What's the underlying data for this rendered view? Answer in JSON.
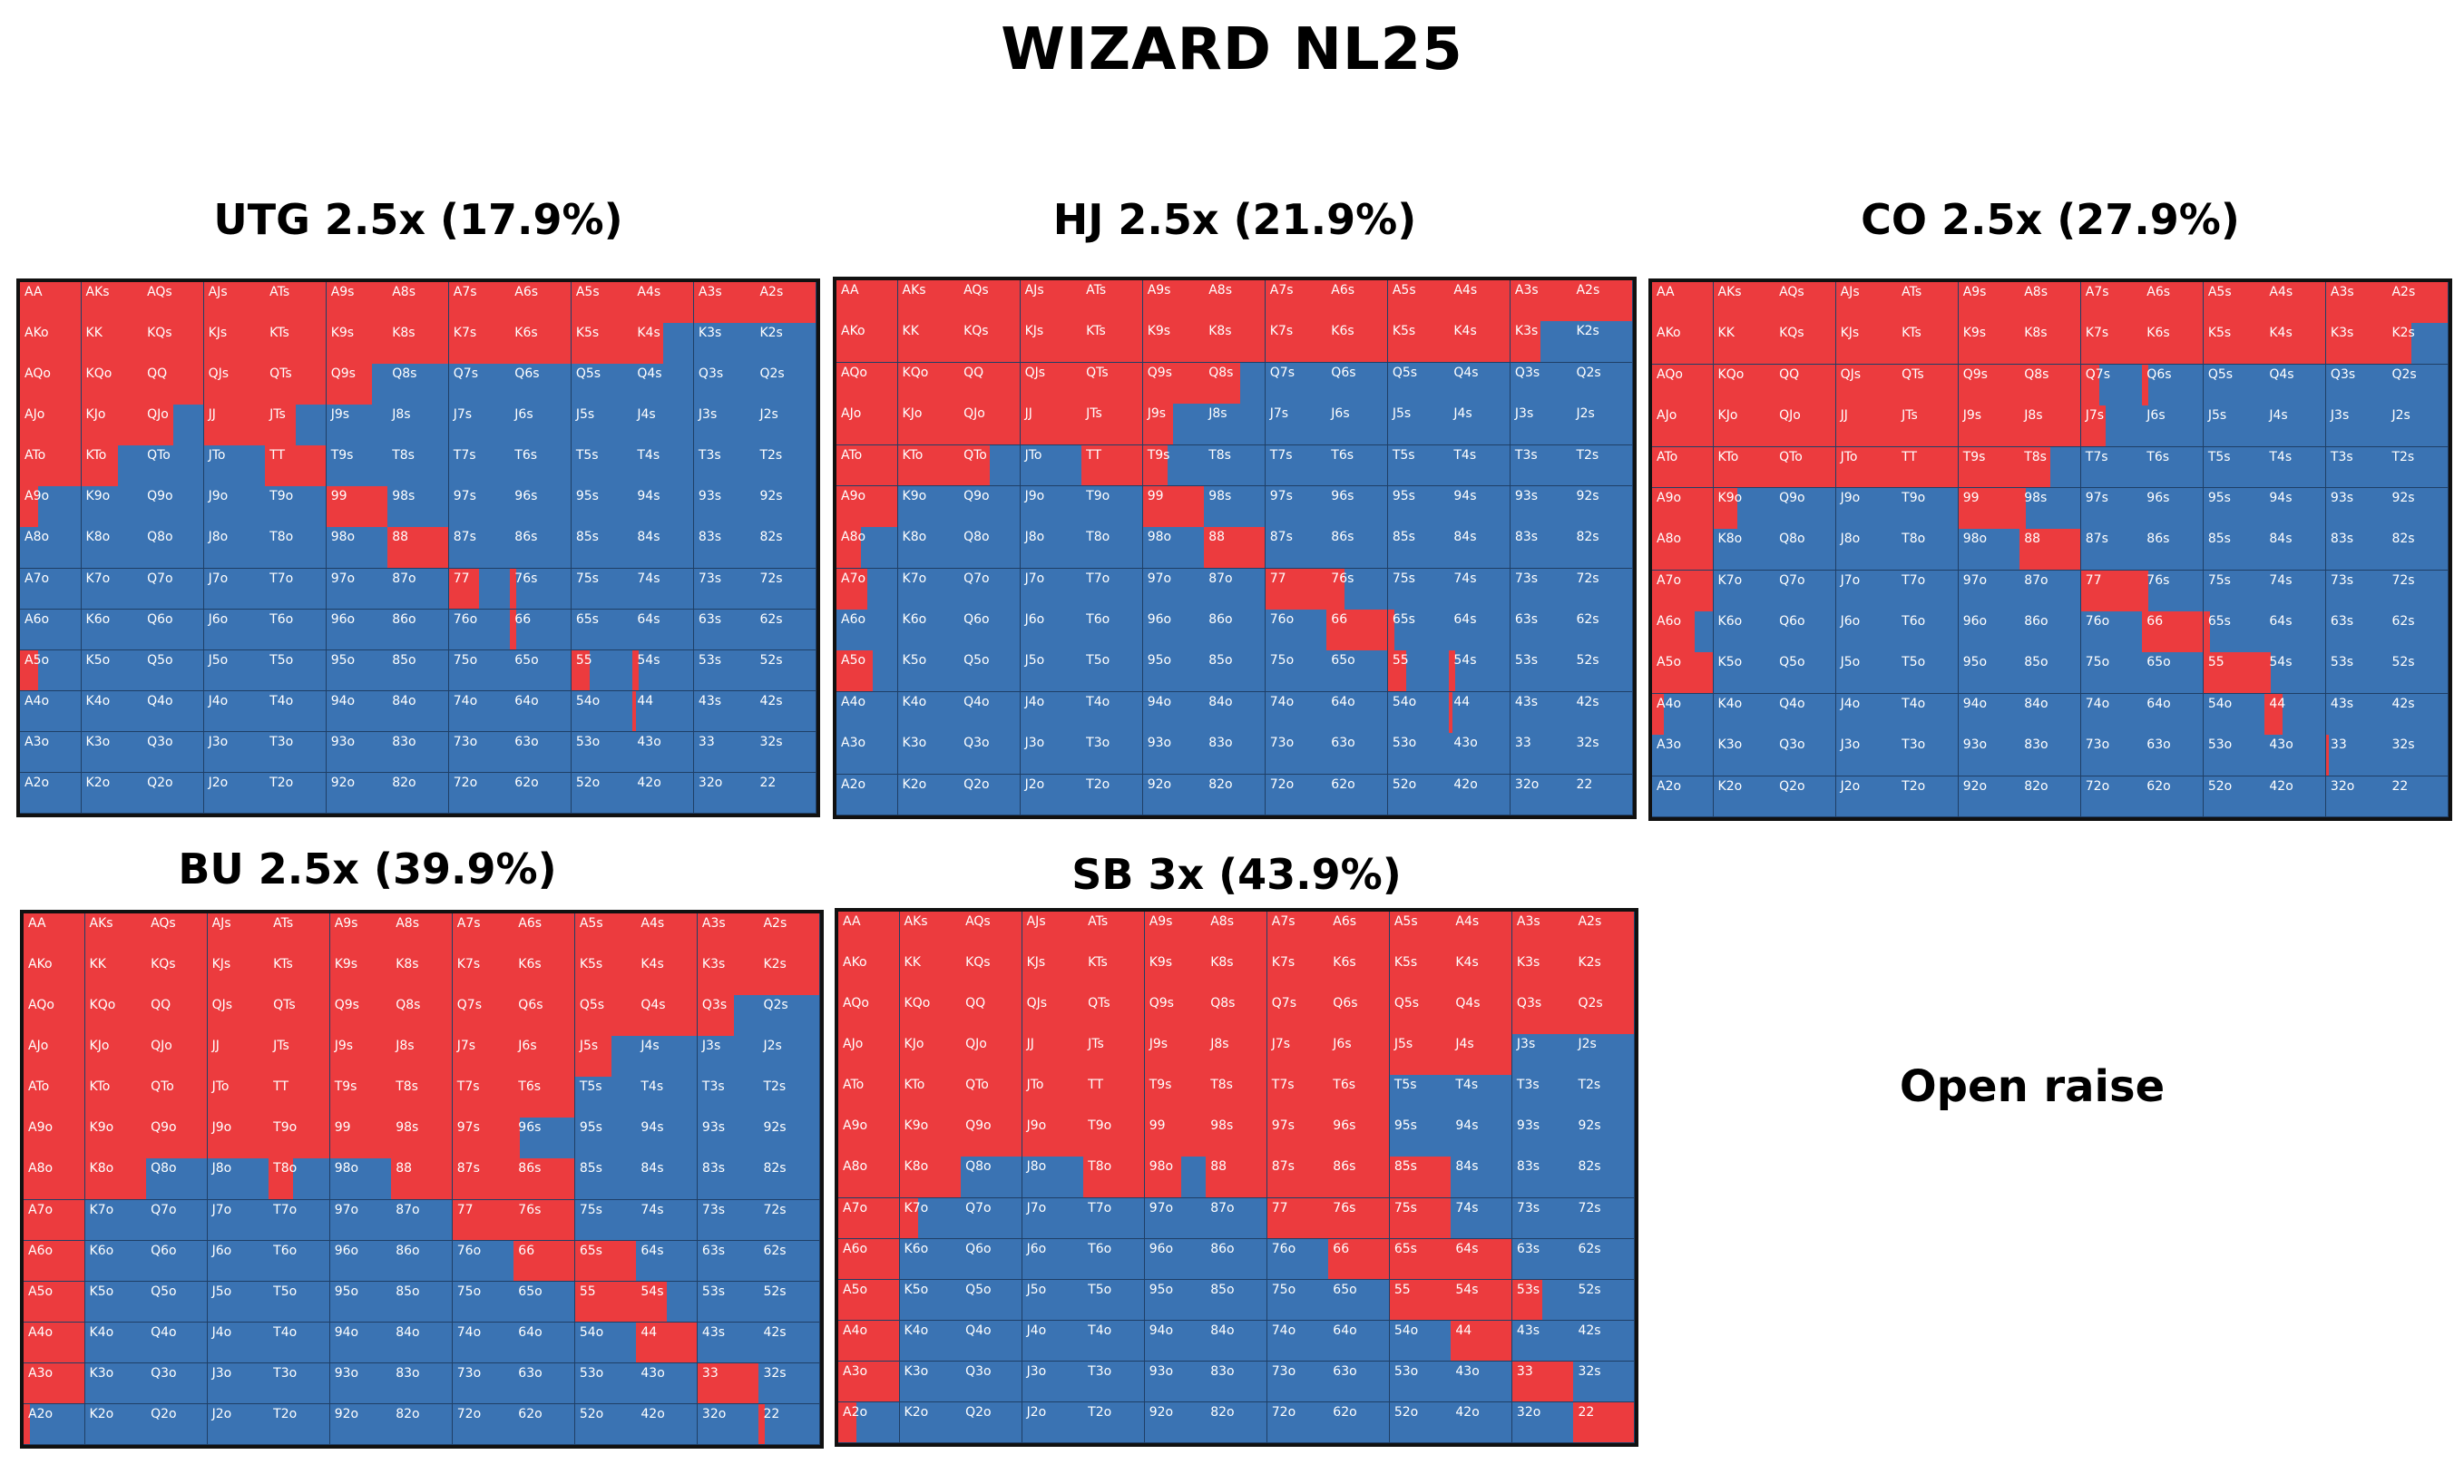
{
  "title": "WIZARD NL25",
  "note": "Open raise",
  "colors": {
    "raise": "#ec3b3e",
    "fold": "#3a73b3",
    "grid_line": "#1f3f66",
    "border": "#111111"
  },
  "chart_data": [
    {
      "type": "heatmap",
      "title": "UTG 2.5x (17.9%)",
      "ranks": [
        "A",
        "K",
        "Q",
        "J",
        "T",
        "9",
        "8",
        "7",
        "6",
        "5",
        "4",
        "3",
        "2"
      ],
      "raise": {
        "AA": 1,
        "AKs": 1,
        "AQs": 1,
        "AJs": 1,
        "ATs": 1,
        "A9s": 1,
        "A8s": 1,
        "A7s": 1,
        "A6s": 1,
        "A5s": 1,
        "A4s": 1,
        "A3s": 1,
        "A2s": 1,
        "AKo": 1,
        "KK": 1,
        "KQs": 1,
        "KJs": 1,
        "KTs": 1,
        "K9s": 1,
        "K8s": 1,
        "K7s": 1,
        "K6s": 1,
        "K5s": 1,
        "K4s": 0.5,
        "AQo": 1,
        "KQo": 1,
        "QQ": 1,
        "QJs": 1,
        "QTs": 1,
        "Q9s": 0.75,
        "AJo": 1,
        "KJo": 1,
        "QJo": 0.5,
        "JJ": 1,
        "JTs": 0.5,
        "ATo": 1,
        "KTo": 0.6,
        "TT": 1,
        "A9o": 0.3,
        "99": 1,
        "88": 1,
        "77": 0.5,
        "76s": 0.1,
        "66": 0.1,
        "A5o": 0.3,
        "55": 0.3,
        "54s": 0.1,
        "44": 0.05
      }
    },
    {
      "type": "heatmap",
      "title": "HJ 2.5x (21.9%)",
      "ranks": [
        "A",
        "K",
        "Q",
        "J",
        "T",
        "9",
        "8",
        "7",
        "6",
        "5",
        "4",
        "3",
        "2"
      ],
      "raise": {
        "AA": 1,
        "AKs": 1,
        "AQs": 1,
        "AJs": 1,
        "ATs": 1,
        "A9s": 1,
        "A8s": 1,
        "A7s": 1,
        "A6s": 1,
        "A5s": 1,
        "A4s": 1,
        "A3s": 1,
        "A2s": 1,
        "AKo": 1,
        "KK": 1,
        "KQs": 1,
        "KJs": 1,
        "KTs": 1,
        "K9s": 1,
        "K8s": 1,
        "K7s": 1,
        "K6s": 1,
        "K5s": 1,
        "K4s": 1,
        "K3s": 0.5,
        "AQo": 1,
        "KQo": 1,
        "QQ": 1,
        "QJs": 1,
        "QTs": 1,
        "Q9s": 1,
        "Q8s": 0.6,
        "AJo": 1,
        "KJo": 1,
        "QJo": 1,
        "JJ": 1,
        "JTs": 1,
        "J9s": 0.5,
        "ATo": 1,
        "KTo": 1,
        "QTo": 0.5,
        "TT": 1,
        "T9s": 0.4,
        "A9o": 1,
        "99": 1,
        "A8o": 0.4,
        "88": 1,
        "A7o": 0.5,
        "77": 1,
        "76s": 0.3,
        "66": 1,
        "65s": 0.1,
        "A5o": 0.6,
        "55": 0.3,
        "54s": 0.1,
        "44": 0.05
      }
    },
    {
      "type": "heatmap",
      "title": "CO 2.5x (27.9%)",
      "ranks": [
        "A",
        "K",
        "Q",
        "J",
        "T",
        "9",
        "8",
        "7",
        "6",
        "5",
        "4",
        "3",
        "2"
      ],
      "raise": {
        "AA": 1,
        "AKs": 1,
        "AQs": 1,
        "AJs": 1,
        "ATs": 1,
        "A9s": 1,
        "A8s": 1,
        "A7s": 1,
        "A6s": 1,
        "A5s": 1,
        "A4s": 1,
        "A3s": 1,
        "A2s": 1,
        "AKo": 1,
        "KK": 1,
        "KQs": 1,
        "KJs": 1,
        "KTs": 1,
        "K9s": 1,
        "K8s": 1,
        "K7s": 1,
        "K6s": 1,
        "K5s": 1,
        "K4s": 1,
        "K3s": 1,
        "K2s": 0.4,
        "AQo": 1,
        "KQo": 1,
        "QQ": 1,
        "QJs": 1,
        "QTs": 1,
        "Q9s": 1,
        "Q8s": 1,
        "Q7s": 0.3,
        "Q6s": 0.1,
        "AJo": 1,
        "KJo": 1,
        "QJo": 1,
        "JJ": 1,
        "JTs": 1,
        "J9s": 1,
        "J8s": 1,
        "J7s": 0.4,
        "ATo": 1,
        "KTo": 1,
        "QTo": 1,
        "JTo": 1,
        "TT": 1,
        "T9s": 1,
        "T8s": 0.5,
        "A9o": 1,
        "K9o": 0.4,
        "99": 1,
        "98s": 0.1,
        "A8o": 1,
        "88": 1,
        "A7o": 1,
        "77": 1,
        "76s": 0.1,
        "A6o": 0.7,
        "66": 1,
        "65s": 0.1,
        "A5o": 1,
        "55": 1,
        "54s": 0.1,
        "A4o": 0.2,
        "44": 0.3,
        "33": 0.05
      }
    },
    {
      "type": "heatmap",
      "title": "BU 2.5x (39.9%)",
      "ranks": [
        "A",
        "K",
        "Q",
        "J",
        "T",
        "9",
        "8",
        "7",
        "6",
        "5",
        "4",
        "3",
        "2"
      ],
      "raise": {
        "AA": 1,
        "AKs": 1,
        "AQs": 1,
        "AJs": 1,
        "ATs": 1,
        "A9s": 1,
        "A8s": 1,
        "A7s": 1,
        "A6s": 1,
        "A5s": 1,
        "A4s": 1,
        "A3s": 1,
        "A2s": 1,
        "AKo": 1,
        "KK": 1,
        "KQs": 1,
        "KJs": 1,
        "KTs": 1,
        "K9s": 1,
        "K8s": 1,
        "K7s": 1,
        "K6s": 1,
        "K5s": 1,
        "K4s": 1,
        "K3s": 1,
        "K2s": 1,
        "AQo": 1,
        "KQo": 1,
        "QQ": 1,
        "QJs": 1,
        "QTs": 1,
        "Q9s": 1,
        "Q8s": 1,
        "Q7s": 1,
        "Q6s": 1,
        "Q5s": 1,
        "Q4s": 1,
        "Q3s": 0.6,
        "AJo": 1,
        "KJo": 1,
        "QJo": 1,
        "JJ": 1,
        "JTs": 1,
        "J9s": 1,
        "J8s": 1,
        "J7s": 1,
        "J6s": 1,
        "J5s": 0.6,
        "ATo": 1,
        "KTo": 1,
        "QTo": 1,
        "JTo": 1,
        "TT": 1,
        "T9s": 1,
        "T8s": 1,
        "T7s": 1,
        "T6s": 1,
        "A9o": 1,
        "K9o": 1,
        "Q9o": 1,
        "J9o": 1,
        "T9o": 1,
        "99": 1,
        "98s": 1,
        "97s": 1,
        "96s": 0.1,
        "A8o": 1,
        "K8o": 1,
        "T8o": 0.4,
        "88": 1,
        "87s": 1,
        "86s": 1,
        "A7o": 1,
        "77": 1,
        "76s": 1,
        "A6o": 1,
        "66": 1,
        "65s": 1,
        "A5o": 1,
        "55": 1,
        "54s": 0.5,
        "A4o": 1,
        "44": 1,
        "A3o": 1,
        "33": 1,
        "A2o": 0.1,
        "22": 0.1
      }
    },
    {
      "type": "heatmap",
      "title": "SB 3x (43.9%)",
      "ranks": [
        "A",
        "K",
        "Q",
        "J",
        "T",
        "9",
        "8",
        "7",
        "6",
        "5",
        "4",
        "3",
        "2"
      ],
      "raise": {
        "AA": 1,
        "AKs": 1,
        "AQs": 1,
        "AJs": 1,
        "ATs": 1,
        "A9s": 1,
        "A8s": 1,
        "A7s": 1,
        "A6s": 1,
        "A5s": 1,
        "A4s": 1,
        "A3s": 1,
        "A2s": 1,
        "AKo": 1,
        "KK": 1,
        "KQs": 1,
        "KJs": 1,
        "KTs": 1,
        "K9s": 1,
        "K8s": 1,
        "K7s": 1,
        "K6s": 1,
        "K5s": 1,
        "K4s": 1,
        "K3s": 1,
        "K2s": 1,
        "AQo": 1,
        "KQo": 1,
        "QQ": 1,
        "QJs": 1,
        "QTs": 1,
        "Q9s": 1,
        "Q8s": 1,
        "Q7s": 1,
        "Q6s": 1,
        "Q5s": 1,
        "Q4s": 1,
        "Q3s": 1,
        "Q2s": 1,
        "AJo": 1,
        "KJo": 1,
        "QJo": 1,
        "JJ": 1,
        "JTs": 1,
        "J9s": 1,
        "J8s": 1,
        "J7s": 1,
        "J6s": 1,
        "J5s": 1,
        "J4s": 1,
        "ATo": 1,
        "KTo": 1,
        "QTo": 1,
        "JTo": 1,
        "TT": 1,
        "T9s": 1,
        "T8s": 1,
        "T7s": 1,
        "T6s": 1,
        "A9o": 1,
        "K9o": 1,
        "Q9o": 1,
        "J9o": 1,
        "T9o": 1,
        "99": 1,
        "98s": 1,
        "97s": 1,
        "96s": 1,
        "A8o": 1,
        "K8o": 1,
        "T8o": 1,
        "98o": 0.6,
        "88": 1,
        "87s": 1,
        "86s": 1,
        "85s": 1,
        "A7o": 1,
        "K7o": 0.3,
        "77": 1,
        "76s": 1,
        "75s": 1,
        "A6o": 1,
        "66": 1,
        "65s": 1,
        "64s": 1,
        "A5o": 1,
        "55": 1,
        "54s": 1,
        "53s": 0.5,
        "A4o": 1,
        "44": 1,
        "A3o": 1,
        "33": 1,
        "A2o": 0.3,
        "22": 1
      }
    }
  ]
}
